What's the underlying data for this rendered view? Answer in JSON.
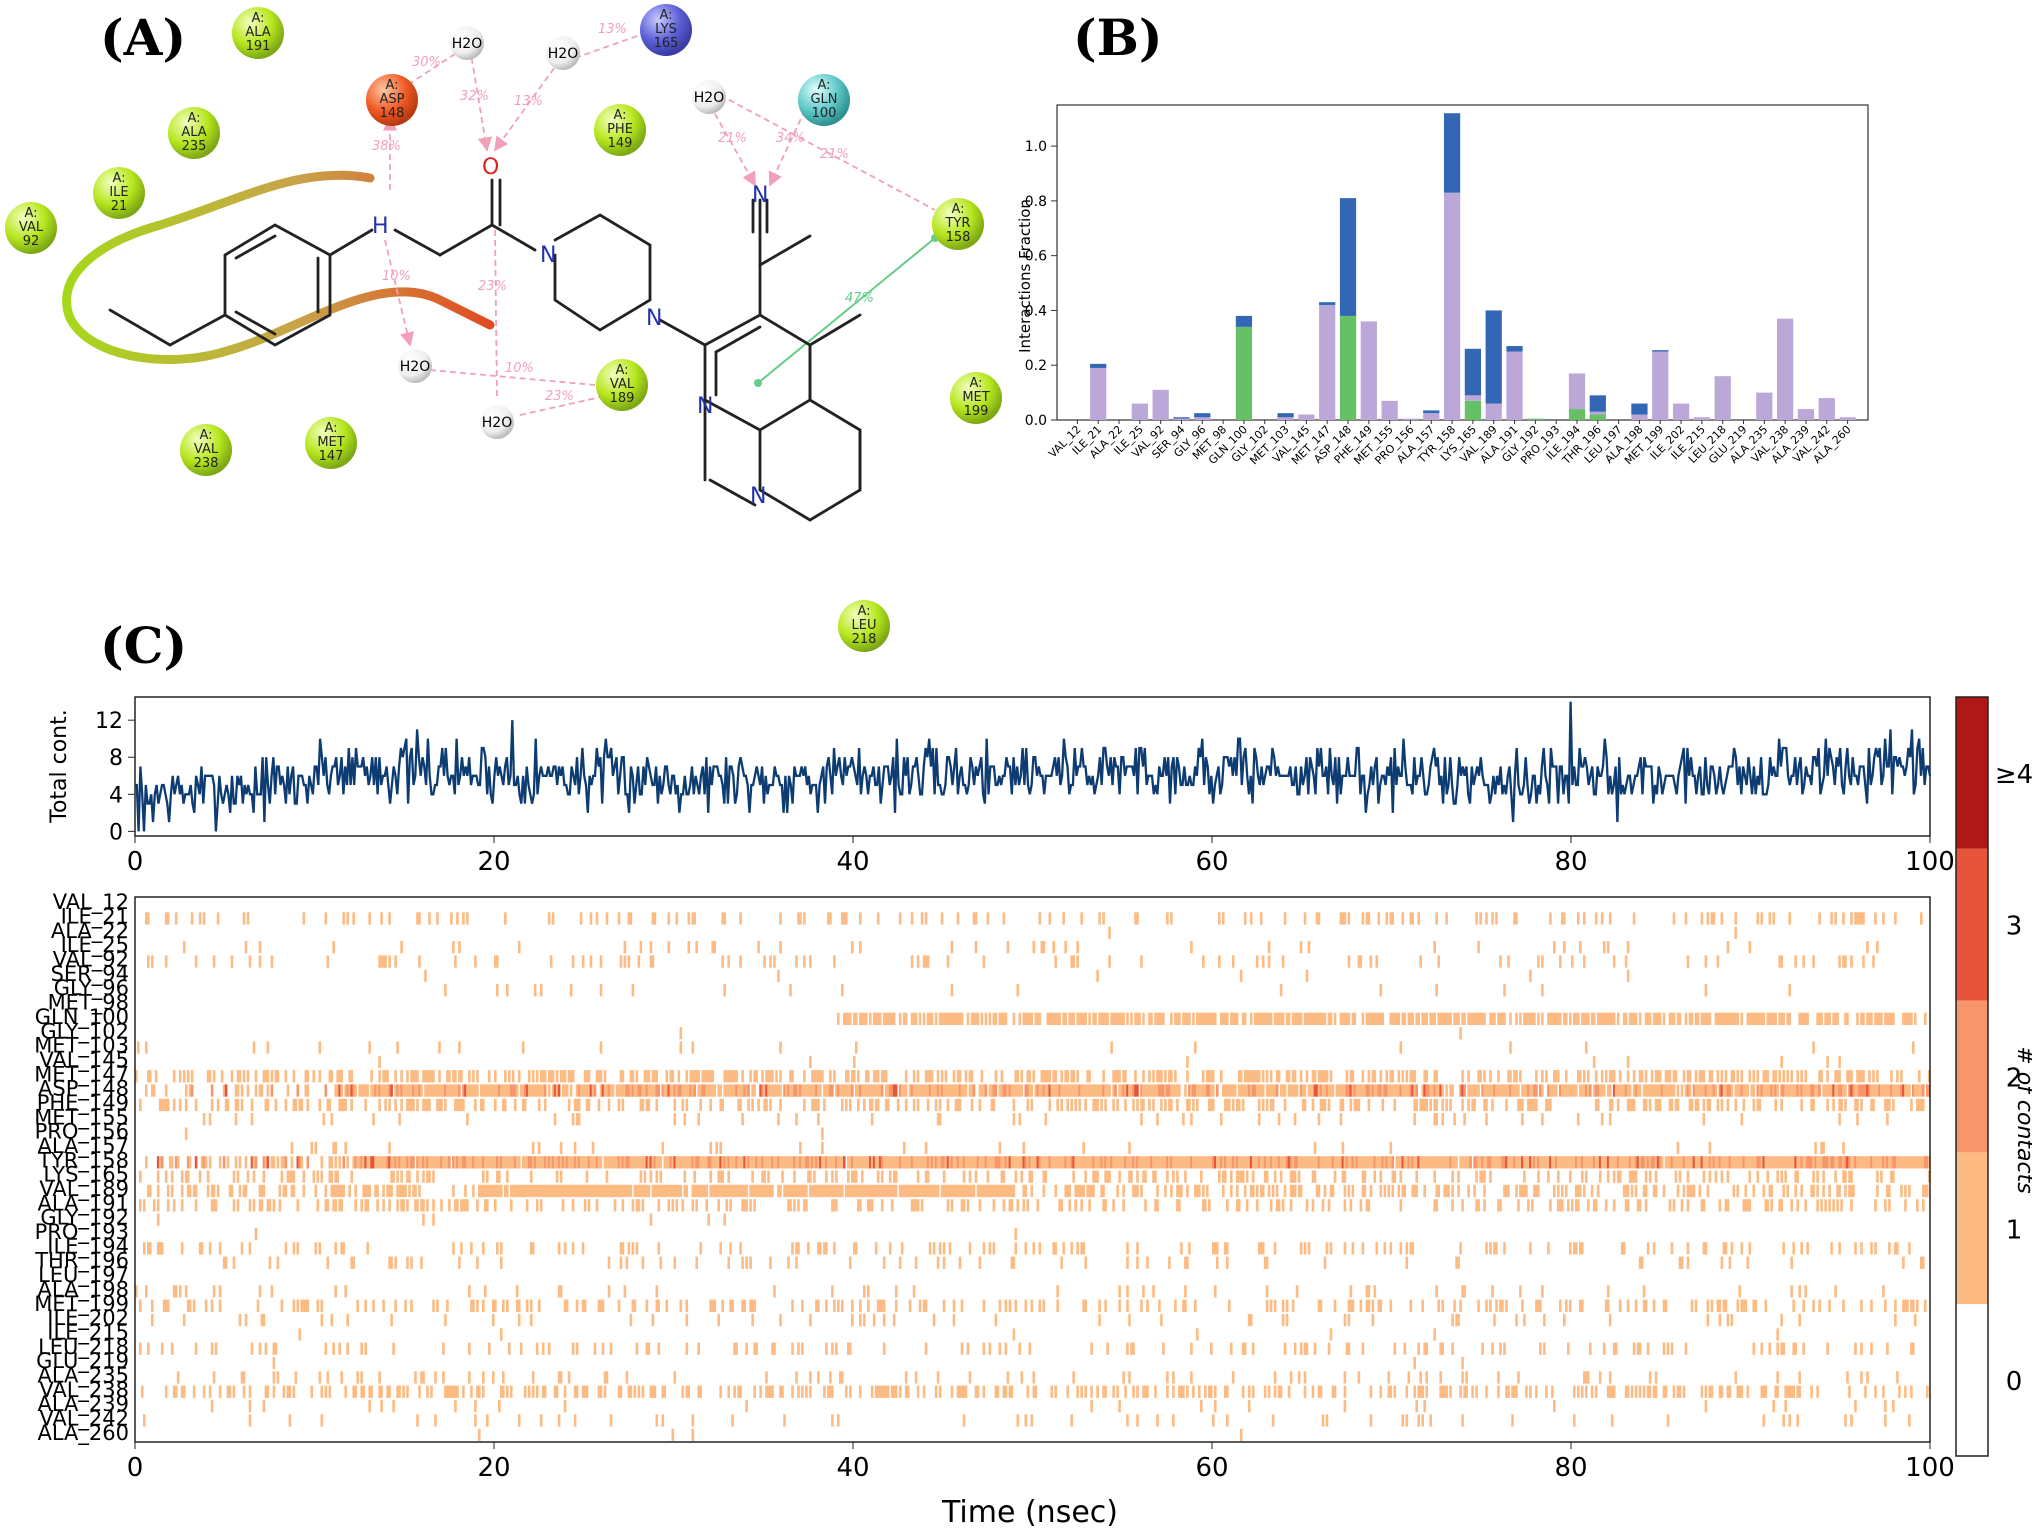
{
  "panels": {
    "a": "(A)",
    "b": "(B)",
    "c": "(C)"
  },
  "diagram": {
    "residues": [
      {
        "id": "ala191",
        "chain": "A:",
        "name": "ALA",
        "num": "191",
        "color": "#b5e61d"
      },
      {
        "id": "asp148",
        "chain": "A:",
        "name": "ASP",
        "num": "148",
        "color": "#f05a24"
      },
      {
        "id": "ala235",
        "chain": "A:",
        "name": "ALA",
        "num": "235",
        "color": "#b5e61d"
      },
      {
        "id": "ile21",
        "chain": "A:",
        "name": "ILE",
        "num": "21",
        "color": "#b5e61d"
      },
      {
        "id": "val92",
        "chain": "A:",
        "name": "VAL",
        "num": "92",
        "color": "#b5e61d"
      },
      {
        "id": "lys165",
        "chain": "A:",
        "name": "LYS",
        "num": "165",
        "color": "#5b5fd6"
      },
      {
        "id": "gln100",
        "chain": "A:",
        "name": "GLN",
        "num": "100",
        "color": "#5ec8c8"
      },
      {
        "id": "phe149",
        "chain": "A:",
        "name": "PHE",
        "num": "149",
        "color": "#b5e61d"
      },
      {
        "id": "tyr158",
        "chain": "A:",
        "name": "TYR",
        "num": "158",
        "color": "#b5e61d"
      },
      {
        "id": "val189",
        "chain": "A:",
        "name": "VAL",
        "num": "189",
        "color": "#b5e61d"
      },
      {
        "id": "met199",
        "chain": "A:",
        "name": "MET",
        "num": "199",
        "color": "#b5e61d"
      },
      {
        "id": "val238",
        "chain": "A:",
        "name": "VAL",
        "num": "238",
        "color": "#b5e61d"
      },
      {
        "id": "met147",
        "chain": "A:",
        "name": "MET",
        "num": "147",
        "color": "#b5e61d"
      },
      {
        "id": "leu218",
        "chain": "A:",
        "name": "LEU",
        "num": "218",
        "color": "#b5e61d"
      }
    ],
    "water_label": "H2O",
    "atoms": {
      "N": "N",
      "O": "O",
      "H": "H"
    },
    "percentages": [
      {
        "id": "p1",
        "text": "30%"
      },
      {
        "id": "p2",
        "text": "32%"
      },
      {
        "id": "p3",
        "text": "13%"
      },
      {
        "id": "p4",
        "text": "13%"
      },
      {
        "id": "p5",
        "text": "38%"
      },
      {
        "id": "p6",
        "text": "21%"
      },
      {
        "id": "p7",
        "text": "34%"
      },
      {
        "id": "p8",
        "text": "21%"
      },
      {
        "id": "p9",
        "text": "47%"
      },
      {
        "id": "p10",
        "text": "10%"
      },
      {
        "id": "p11",
        "text": "23%"
      },
      {
        "id": "p12",
        "text": "10%"
      },
      {
        "id": "p13",
        "text": "23%"
      }
    ]
  },
  "chart_data": [
    {
      "type": "bar",
      "panel": "B",
      "ylabel": "Interactions Fraction",
      "ylim": [
        0,
        1.15
      ],
      "yticks": [
        "0.0",
        "0.2",
        "0.4",
        "0.6",
        "0.8",
        "1.0"
      ],
      "categories": [
        "VAL_12",
        "ILE_21",
        "ALA_22",
        "ILE_25",
        "VAL_92",
        "SER_94",
        "GLY_96",
        "MET_98",
        "GLN_100",
        "GLY_102",
        "MET_103",
        "VAL_145",
        "MET_147",
        "ASP_148",
        "PHE_149",
        "MET_155",
        "PRO_156",
        "ALA_157",
        "TYR_158",
        "LYS_165",
        "VAL_189",
        "ALA_191",
        "GLY_192",
        "PRO_193",
        "ILE_194",
        "THR_196",
        "LEU_197",
        "ALA_198",
        "MET_199",
        "ILE_202",
        "ILE_215",
        "LEU_218",
        "GLU_219",
        "ALA_235",
        "VAL_238",
        "ALA_239",
        "VAL_242",
        "ALA_260"
      ],
      "stacked": true,
      "series": [
        {
          "key": "hb",
          "color": "#66c066",
          "values": [
            0,
            0,
            0,
            0,
            0,
            0,
            0,
            0,
            0.34,
            0,
            0,
            0,
            0,
            0.38,
            0,
            0,
            0,
            0,
            0,
            0.07,
            0,
            0,
            0.005,
            0,
            0.04,
            0.02,
            0,
            0,
            0,
            0,
            0,
            0,
            0,
            0,
            0,
            0,
            0,
            0
          ]
        },
        {
          "key": "hp",
          "color": "#bba8d8",
          "values": [
            0,
            0.19,
            0,
            0.06,
            0.11,
            0.005,
            0.01,
            0,
            0,
            0,
            0.01,
            0.02,
            0.42,
            0,
            0.36,
            0.07,
            0.005,
            0.025,
            0.83,
            0.02,
            0.06,
            0.25,
            0,
            0,
            0.13,
            0.01,
            0,
            0.02,
            0.25,
            0.06,
            0.01,
            0.16,
            0,
            0.1,
            0.37,
            0.04,
            0.08,
            0.01
          ]
        },
        {
          "key": "wb",
          "color": "#3366b3",
          "values": [
            0,
            0.015,
            0,
            0,
            0,
            0.005,
            0.015,
            0,
            0.04,
            0,
            0.015,
            0,
            0.01,
            0.43,
            0,
            0,
            0,
            0.01,
            0.29,
            0.17,
            0.34,
            0.02,
            0,
            0,
            0,
            0.06,
            0,
            0.04,
            0.005,
            0,
            0,
            0,
            0,
            0,
            0,
            0,
            0,
            0
          ]
        }
      ]
    },
    {
      "type": "line",
      "panel": "C-top",
      "ylabel": "Total cont.",
      "xlim": [
        0,
        100
      ],
      "ylim": [
        -0.5,
        14.5
      ],
      "yticks": [
        "0",
        "4",
        "8",
        "12"
      ],
      "xticks": [
        "0",
        "20",
        "40",
        "60",
        "80",
        "100"
      ],
      "color": "#0d3c73",
      "sampling": "1000 frames 0-100 nsec, fluctuating ~2-12 contacts, mean rising from ~4 to ~6.5 after 10 nsec"
    },
    {
      "type": "heatmap",
      "panel": "C-bottom",
      "xlabel": "Time (nsec)",
      "xlim": [
        0,
        100
      ],
      "xticks": [
        "0",
        "20",
        "40",
        "60",
        "80",
        "100"
      ],
      "rows": [
        "VAL_12",
        "ILE_21",
        "ALA_22",
        "ILE_25",
        "VAL_92",
        "SER_94",
        "GLY_96",
        "MET_98",
        "GLN_100",
        "GLY_102",
        "MET_103",
        "VAL_145",
        "MET_147",
        "ASP_148",
        "PHE_149",
        "MET_155",
        "PRO_156",
        "ALA_157",
        "TYR_158",
        "LYS_165",
        "VAL_189",
        "ALA_191",
        "GLY_192",
        "PRO_193",
        "ILE_194",
        "THR_196",
        "LEU_197",
        "ALA_198",
        "MET_199",
        "ILE_202",
        "ILE_215",
        "LEU_218",
        "GLU_219",
        "ALA_235",
        "VAL_238",
        "ALA_239",
        "VAL_242",
        "ALA_260"
      ],
      "occupancy": [
        0.002,
        0.19,
        0.003,
        0.06,
        0.11,
        0.01,
        0.025,
        0.002,
        0.38,
        0.002,
        0.025,
        0.02,
        0.43,
        0.81,
        0.36,
        0.07,
        0.005,
        0.035,
        1.12,
        0.26,
        0.41,
        0.27,
        0.005,
        0.003,
        0.17,
        0.08,
        0.002,
        0.065,
        0.25,
        0.06,
        0.01,
        0.16,
        0.003,
        0.1,
        0.37,
        0.04,
        0.08,
        0.01
      ],
      "colorbar": {
        "label": "# of contacts",
        "ticks": [
          "0",
          "1",
          "2",
          "3",
          "≥4"
        ],
        "colors": [
          "#ffffff",
          "#fdbb84",
          "#f8966b",
          "#e6553a",
          "#b01818"
        ]
      }
    }
  ]
}
